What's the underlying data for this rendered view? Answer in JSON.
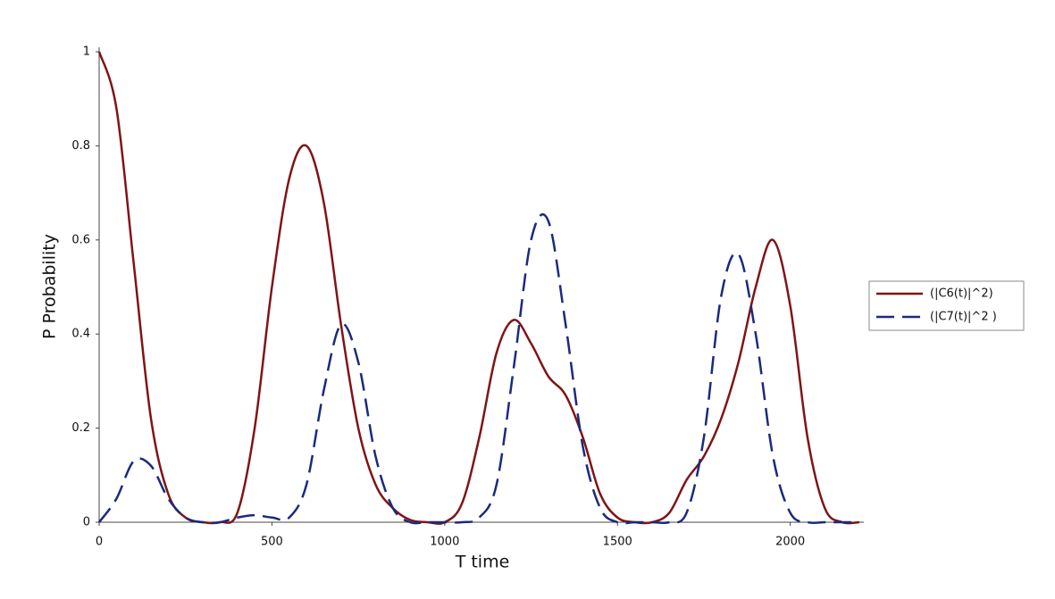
{
  "chart_data": {
    "type": "line",
    "xlabel": "T time",
    "ylabel": "P Probability",
    "x": [
      0,
      50,
      100,
      150,
      200,
      250,
      300,
      350,
      400,
      450,
      500,
      550,
      600,
      650,
      700,
      750,
      800,
      850,
      900,
      950,
      1000,
      1050,
      1100,
      1150,
      1200,
      1250,
      1300,
      1350,
      1400,
      1450,
      1500,
      1550,
      1600,
      1650,
      1700,
      1750,
      1800,
      1850,
      1900,
      1950,
      2000,
      2050,
      2100,
      2150,
      2200
    ],
    "series": [
      {
        "name": "(|C6(t)|^2)",
        "color": "#7f1416",
        "dash": false,
        "values": [
          1.0,
          0.88,
          0.55,
          0.22,
          0.06,
          0.01,
          0,
          0,
          0.02,
          0.2,
          0.5,
          0.73,
          0.8,
          0.68,
          0.42,
          0.2,
          0.08,
          0.03,
          0.005,
          0,
          0,
          0.04,
          0.18,
          0.36,
          0.43,
          0.38,
          0.31,
          0.27,
          0.18,
          0.06,
          0.01,
          0,
          0,
          0.02,
          0.09,
          0.14,
          0.22,
          0.34,
          0.5,
          0.6,
          0.46,
          0.18,
          0.03,
          0,
          0
        ]
      },
      {
        "name": "(|C7(t)|^2 )",
        "color": "#1a2a7f",
        "dash": true,
        "values": [
          0,
          0.05,
          0.13,
          0.12,
          0.05,
          0.01,
          0,
          0,
          0.01,
          0.015,
          0.01,
          0.01,
          0.08,
          0.28,
          0.42,
          0.34,
          0.14,
          0.03,
          0,
          0,
          0,
          0,
          0.01,
          0.08,
          0.33,
          0.6,
          0.64,
          0.42,
          0.16,
          0.03,
          0,
          0,
          0,
          0,
          0.02,
          0.18,
          0.48,
          0.57,
          0.4,
          0.14,
          0.02,
          0,
          0,
          0,
          0
        ]
      }
    ],
    "xlim": [
      0,
      2200
    ],
    "ylim": [
      0,
      1
    ],
    "xticks": [
      0,
      500,
      1000,
      1500,
      2000
    ],
    "yticks": [
      0,
      0.2,
      0.4,
      0.6,
      0.8,
      1
    ],
    "legend": "right"
  }
}
